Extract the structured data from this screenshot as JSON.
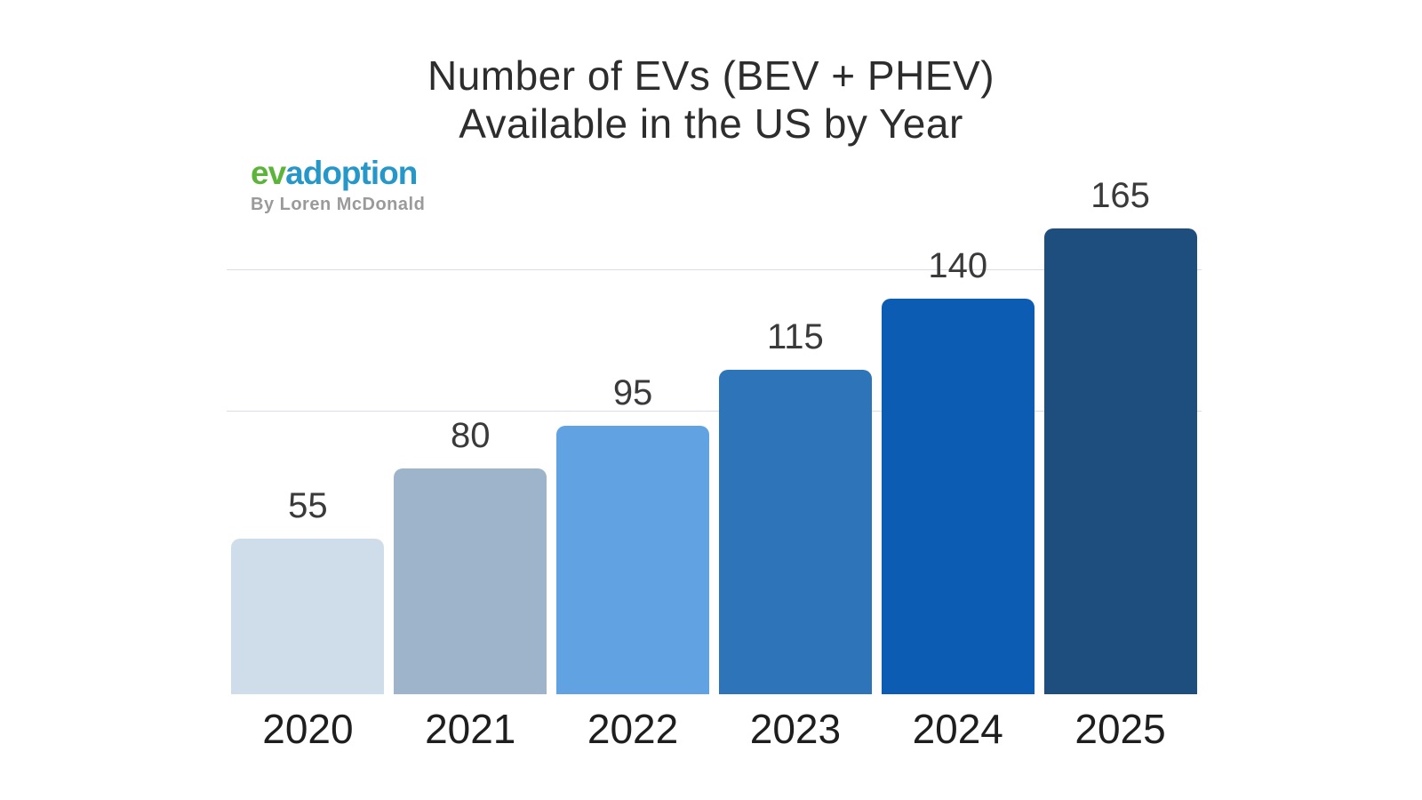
{
  "title": {
    "line1": "Number of EVs (BEV + PHEV)",
    "line2": "Available in the US by Year"
  },
  "logo": {
    "part1": "ev",
    "part2": "adoption",
    "part1_color": "#5cb53a",
    "part2_color": "#2597c8",
    "tagline": "By Loren McDonald"
  },
  "chart_data": {
    "type": "bar",
    "title": "Number of EVs (BEV + PHEV) Available in the US by Year",
    "categories": [
      "2020",
      "2021",
      "2022",
      "2023",
      "2024",
      "2025"
    ],
    "values": [
      55,
      80,
      95,
      115,
      140,
      165
    ],
    "bar_colors": [
      "#cfdcea",
      "#9db4cb",
      "#60a2e2",
      "#2e74b9",
      "#0c5cb4",
      "#1d4e7d"
    ],
    "ylim": [
      0,
      175
    ],
    "gridlines": [
      100,
      150
    ],
    "grid_color": "#d7dee8",
    "xlabel": "",
    "ylabel": "",
    "legend": "none",
    "value_labels": "above-bars"
  }
}
